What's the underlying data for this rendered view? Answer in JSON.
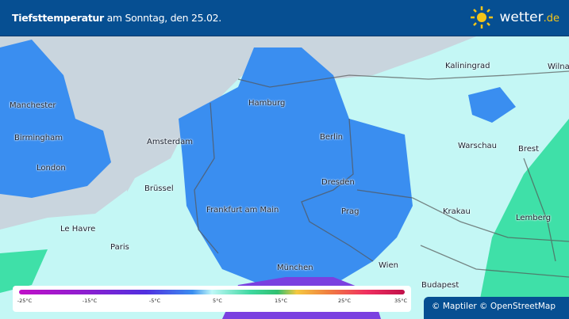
{
  "header": {
    "title_bold": "Tiefsttemperatur",
    "title_rest": " am Sonntag, den 25.02.",
    "logo": "wetter",
    "logo_suffix": ".de",
    "logo_icon": "sun-icon"
  },
  "colors": {
    "header": "#064f92",
    "land": "#c4f7f5",
    "sea": "#c9d5de",
    "cold": "#3a8ef0",
    "mild": "#3fe0a8"
  },
  "cities": [
    "Manchester",
    "Birmingham",
    "London",
    "Amsterdam",
    "Hamburg",
    "Berlin",
    "Kaliningrad",
    "Wilna",
    "Warschau",
    "Brest",
    "Brüssel",
    "Dresden",
    "Frankfurt am Main",
    "Prag",
    "Krakau",
    "Lemberg",
    "Le Havre",
    "Paris",
    "Wien",
    "München",
    "Budapest"
  ],
  "legend": {
    "ticks": [
      "-25°C",
      "-15°C",
      "-5°C",
      "5°C",
      "15°C",
      "25°C",
      "35°C"
    ]
  },
  "attribution": "© Maptiler © OpenStreetMap"
}
